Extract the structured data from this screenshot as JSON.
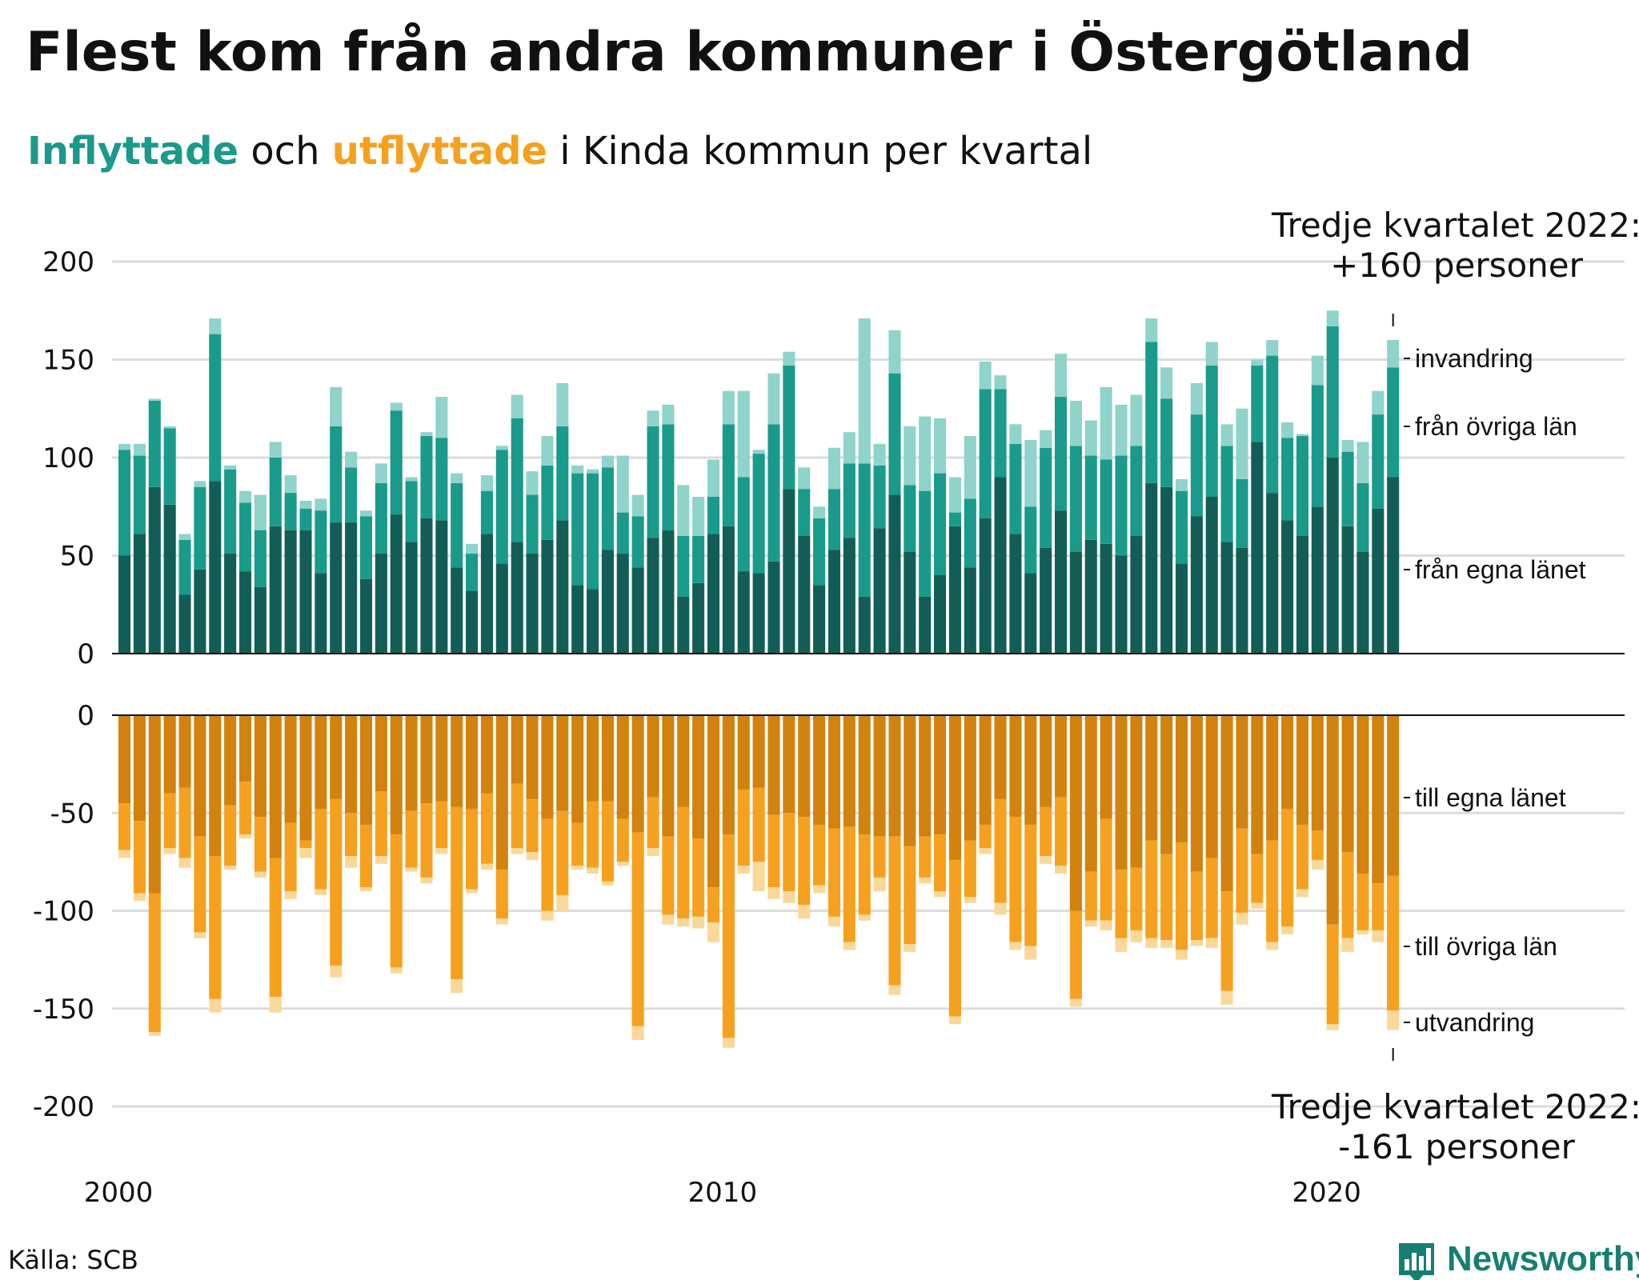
{
  "title": "Flest kom från andra kommuner i Östergötland",
  "subtitle": {
    "part1": "Inflyttade",
    "part2": " och ",
    "part3": "utflyttade",
    "part4": " i Kinda kommun per kvartal"
  },
  "annotations": {
    "top_line1": "Tredje kvartalet 2022:",
    "top_line2": "+160 personer",
    "bottom_line1": "Tredje kvartalet 2022:",
    "bottom_line2": "-161 personer"
  },
  "source": "Källa: SCB",
  "brand": "Newsworthy",
  "colors": {
    "in_own": "#125e57",
    "in_other": "#1a9a8b",
    "in_immig": "#8fd3cb",
    "out_own": "#d1820f",
    "out_other": "#f5a11f",
    "out_emig": "#fad89a",
    "teal_text": "#1a9a8b",
    "orange_text": "#f5a11f",
    "grid": "#dcdcdc",
    "brand": "#177f72"
  },
  "chart_data": {
    "type": "bar",
    "x_axis": {
      "ticks": [
        2000,
        2010,
        2020
      ],
      "start": "2000 Q1",
      "end": "2022 Q3"
    },
    "inflow_panel": {
      "ylim": [
        0,
        200
      ],
      "yticks": [
        0,
        50,
        100,
        150,
        200
      ],
      "series_labels": [
        "från egna länet",
        "från övriga län",
        "invandring"
      ],
      "from_own_county": [
        50,
        61,
        85,
        76,
        30,
        43,
        88,
        51,
        42,
        34,
        65,
        63,
        63,
        41,
        67,
        67,
        38,
        51,
        71,
        57,
        69,
        68,
        44,
        32,
        61,
        46,
        57,
        51,
        58,
        68,
        35,
        33,
        53,
        51,
        44,
        59,
        63,
        29,
        36,
        61,
        65,
        42,
        41,
        47,
        84,
        60,
        35,
        53,
        59,
        29,
        64,
        81,
        52,
        29,
        40,
        65,
        44,
        69,
        90,
        61,
        41,
        54,
        73,
        52,
        58,
        56,
        50,
        60,
        87,
        85,
        46,
        70,
        80,
        57,
        54,
        108,
        82,
        68,
        60,
        75,
        100,
        65,
        52,
        74,
        90
      ],
      "from_other_counties": [
        54,
        40,
        44,
        39,
        28,
        42,
        75,
        43,
        35,
        29,
        35,
        19,
        11,
        32,
        49,
        28,
        32,
        36,
        53,
        31,
        42,
        42,
        43,
        19,
        22,
        58,
        63,
        30,
        38,
        48,
        57,
        59,
        42,
        21,
        26,
        57,
        54,
        31,
        24,
        19,
        52,
        48,
        61,
        70,
        63,
        24,
        34,
        31,
        38,
        68,
        32,
        62,
        34,
        54,
        52,
        7,
        35,
        66,
        45,
        46,
        34,
        51,
        58,
        54,
        43,
        43,
        51,
        46,
        72,
        45,
        37,
        52,
        67,
        49,
        35,
        39,
        70,
        42,
        51,
        62,
        67,
        38,
        35,
        48,
        56
      ],
      "immigration": [
        3,
        6,
        1,
        1,
        3,
        3,
        8,
        2,
        6,
        18,
        8,
        9,
        4,
        6,
        20,
        8,
        3,
        10,
        4,
        2,
        2,
        21,
        5,
        5,
        8,
        2,
        12,
        12,
        15,
        22,
        4,
        2,
        6,
        29,
        11,
        8,
        10,
        26,
        20,
        19,
        17,
        44,
        2,
        26,
        7,
        11,
        6,
        21,
        16,
        74,
        11,
        22,
        30,
        38,
        28,
        18,
        32,
        14,
        7,
        10,
        34,
        9,
        22,
        23,
        18,
        37,
        26,
        26,
        12,
        16,
        6,
        16,
        12,
        11,
        36,
        3,
        8,
        8,
        1,
        15,
        8,
        6,
        21,
        12,
        14
      ]
    },
    "outflow_panel": {
      "ylim": [
        -200,
        0
      ],
      "yticks": [
        0,
        -50,
        -100,
        -150,
        -200
      ],
      "series_labels": [
        "till egna länet",
        "till övriga län",
        "utvandring"
      ],
      "to_own_county": [
        -45,
        -54,
        -91,
        -40,
        -37,
        -62,
        -72,
        -46,
        -34,
        -52,
        -73,
        -55,
        -64,
        -48,
        -43,
        -50,
        -56,
        -39,
        -61,
        -49,
        -45,
        -44,
        -47,
        -48,
        -40,
        -79,
        -35,
        -43,
        -53,
        -49,
        -55,
        -44,
        -44,
        -53,
        -60,
        -42,
        -62,
        -47,
        -63,
        -88,
        -61,
        -38,
        -37,
        -51,
        -50,
        -52,
        -56,
        -58,
        -57,
        -61,
        -62,
        -62,
        -67,
        -62,
        -61,
        -74,
        -64,
        -56,
        -43,
        -52,
        -56,
        -47,
        -42,
        -100,
        -80,
        -53,
        -79,
        -78,
        -64,
        -71,
        -65,
        -80,
        -73,
        -90,
        -58,
        -71,
        -64,
        -48,
        -56,
        -59,
        -107,
        -70,
        -81,
        -86,
        -82
      ],
      "to_other_counties": [
        -24,
        -37,
        -71,
        -28,
        -36,
        -49,
        -73,
        -31,
        -27,
        -28,
        -71,
        -35,
        -4,
        -41,
        -85,
        -22,
        -32,
        -33,
        -68,
        -29,
        -38,
        -24,
        -88,
        -41,
        -36,
        -25,
        -33,
        -27,
        -47,
        -43,
        -22,
        -34,
        -41,
        -22,
        -99,
        -26,
        -40,
        -57,
        -40,
        -18,
        -104,
        -39,
        -38,
        -37,
        -40,
        -45,
        -31,
        -45,
        -59,
        -41,
        -21,
        -76,
        -50,
        -21,
        -29,
        -80,
        -29,
        -12,
        -53,
        -64,
        -62,
        -25,
        -35,
        -45,
        -25,
        -52,
        -35,
        -32,
        -50,
        -44,
        -55,
        -35,
        -41,
        -51,
        -43,
        -25,
        -52,
        -60,
        -33,
        -15,
        -51,
        -44,
        -29,
        -24,
        -69
      ],
      "emigration": [
        -4,
        -4,
        -2,
        -3,
        -5,
        -3,
        -7,
        -2,
        -2,
        -3,
        -8,
        -4,
        -5,
        -3,
        -6,
        -6,
        -2,
        -4,
        -3,
        -2,
        -3,
        -3,
        -7,
        -2,
        -3,
        -3,
        -3,
        -4,
        -5,
        -8,
        -2,
        -3,
        -2,
        -2,
        -7,
        -4,
        -5,
        -4,
        -6,
        -10,
        -5,
        -4,
        -15,
        -6,
        -6,
        -7,
        -4,
        -5,
        -4,
        -3,
        -7,
        -5,
        -4,
        -3,
        -3,
        -4,
        -3,
        -3,
        -6,
        -4,
        -7,
        -4,
        -4,
        -4,
        -3,
        -5,
        -7,
        -6,
        -5,
        -4,
        -5,
        -3,
        -5,
        -7,
        -6,
        -3,
        -4,
        -4,
        -4,
        -5,
        -3,
        -7,
        -2,
        -6,
        -10
      ]
    }
  }
}
